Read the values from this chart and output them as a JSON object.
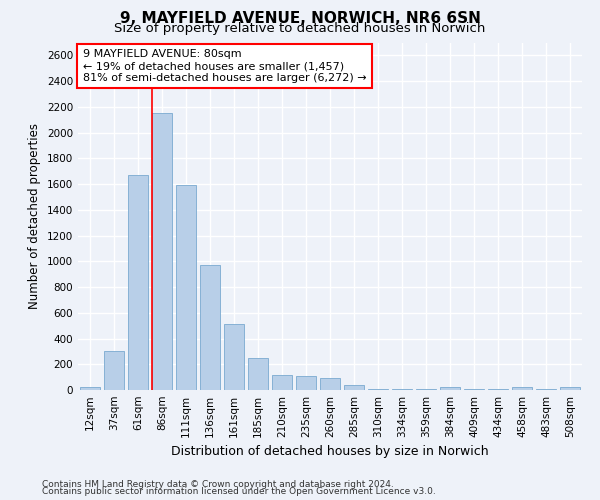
{
  "title1": "9, MAYFIELD AVENUE, NORWICH, NR6 6SN",
  "title2": "Size of property relative to detached houses in Norwich",
  "xlabel": "Distribution of detached houses by size in Norwich",
  "ylabel": "Number of detached properties",
  "categories": [
    "12sqm",
    "37sqm",
    "61sqm",
    "86sqm",
    "111sqm",
    "136sqm",
    "161sqm",
    "185sqm",
    "210sqm",
    "235sqm",
    "260sqm",
    "285sqm",
    "310sqm",
    "334sqm",
    "359sqm",
    "384sqm",
    "409sqm",
    "434sqm",
    "458sqm",
    "483sqm",
    "508sqm"
  ],
  "values": [
    20,
    300,
    1670,
    2150,
    1595,
    970,
    510,
    245,
    120,
    110,
    95,
    40,
    10,
    5,
    5,
    20,
    5,
    5,
    20,
    5,
    20
  ],
  "bar_color": "#b8cfe8",
  "bar_edge_color": "#7aaad0",
  "vline_index": 3,
  "vline_color": "red",
  "annotation_text": "9 MAYFIELD AVENUE: 80sqm\n← 19% of detached houses are smaller (1,457)\n81% of semi-detached houses are larger (6,272) →",
  "annotation_box_color": "white",
  "annotation_box_edge": "red",
  "ylim": [
    0,
    2700
  ],
  "yticks": [
    0,
    200,
    400,
    600,
    800,
    1000,
    1200,
    1400,
    1600,
    1800,
    2000,
    2200,
    2400,
    2600
  ],
  "footnote1": "Contains HM Land Registry data © Crown copyright and database right 2024.",
  "footnote2": "Contains public sector information licensed under the Open Government Licence v3.0.",
  "bg_color": "#eef2f9",
  "grid_color": "white",
  "title_fontsize": 11,
  "subtitle_fontsize": 9.5,
  "tick_fontsize": 7.5,
  "ylabel_fontsize": 8.5,
  "xlabel_fontsize": 9,
  "footnote_fontsize": 6.5
}
